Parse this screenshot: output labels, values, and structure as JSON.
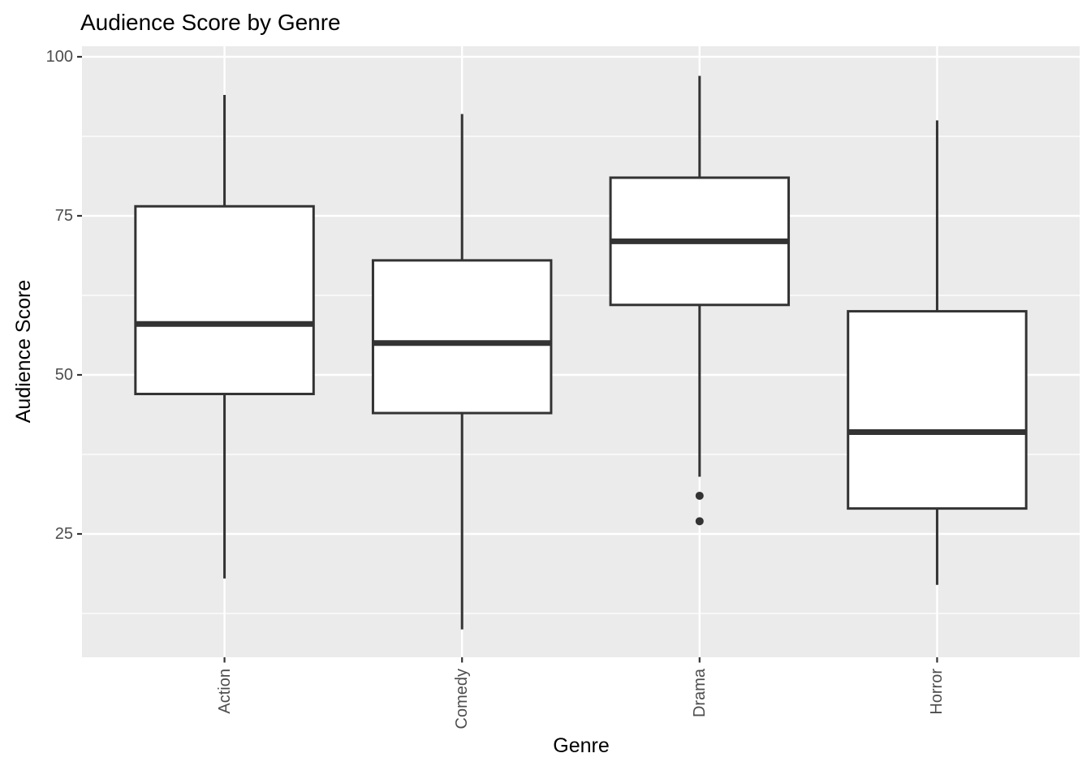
{
  "chart_data": {
    "type": "boxplot",
    "title": "Audience Score by Genre",
    "xlabel": "Genre",
    "ylabel": "Audience Score",
    "categories": [
      "Action",
      "Comedy",
      "Drama",
      "Horror"
    ],
    "y_axis": {
      "ticks": [
        100,
        75,
        50,
        25
      ],
      "minor_ticks": [
        87.5,
        62.5,
        37.5,
        12.5
      ],
      "range": [
        5.6,
        101.7
      ],
      "grid": true
    },
    "series": [
      {
        "category": "Action",
        "min": 18,
        "q1": 47,
        "median": 58,
        "q3": 76.5,
        "max": 94,
        "outliers": []
      },
      {
        "category": "Comedy",
        "min": 10,
        "q1": 44,
        "median": 55,
        "q3": 68,
        "max": 91,
        "outliers": []
      },
      {
        "category": "Drama",
        "min": 34,
        "q1": 61,
        "median": 71,
        "q3": 81,
        "max": 97,
        "outliers": [
          31,
          27
        ]
      },
      {
        "category": "Horror",
        "min": 17,
        "q1": 29,
        "median": 41,
        "q3": 60,
        "max": 90,
        "outliers": []
      }
    ],
    "legend": "none",
    "style": {
      "panel_bg": "#EBEBEB",
      "grid_color": "#FFFFFF",
      "box_fill": "#FFFFFF",
      "stroke_color": "#333333",
      "tick_text_color": "#4D4D4D",
      "title_color": "#000000"
    }
  }
}
